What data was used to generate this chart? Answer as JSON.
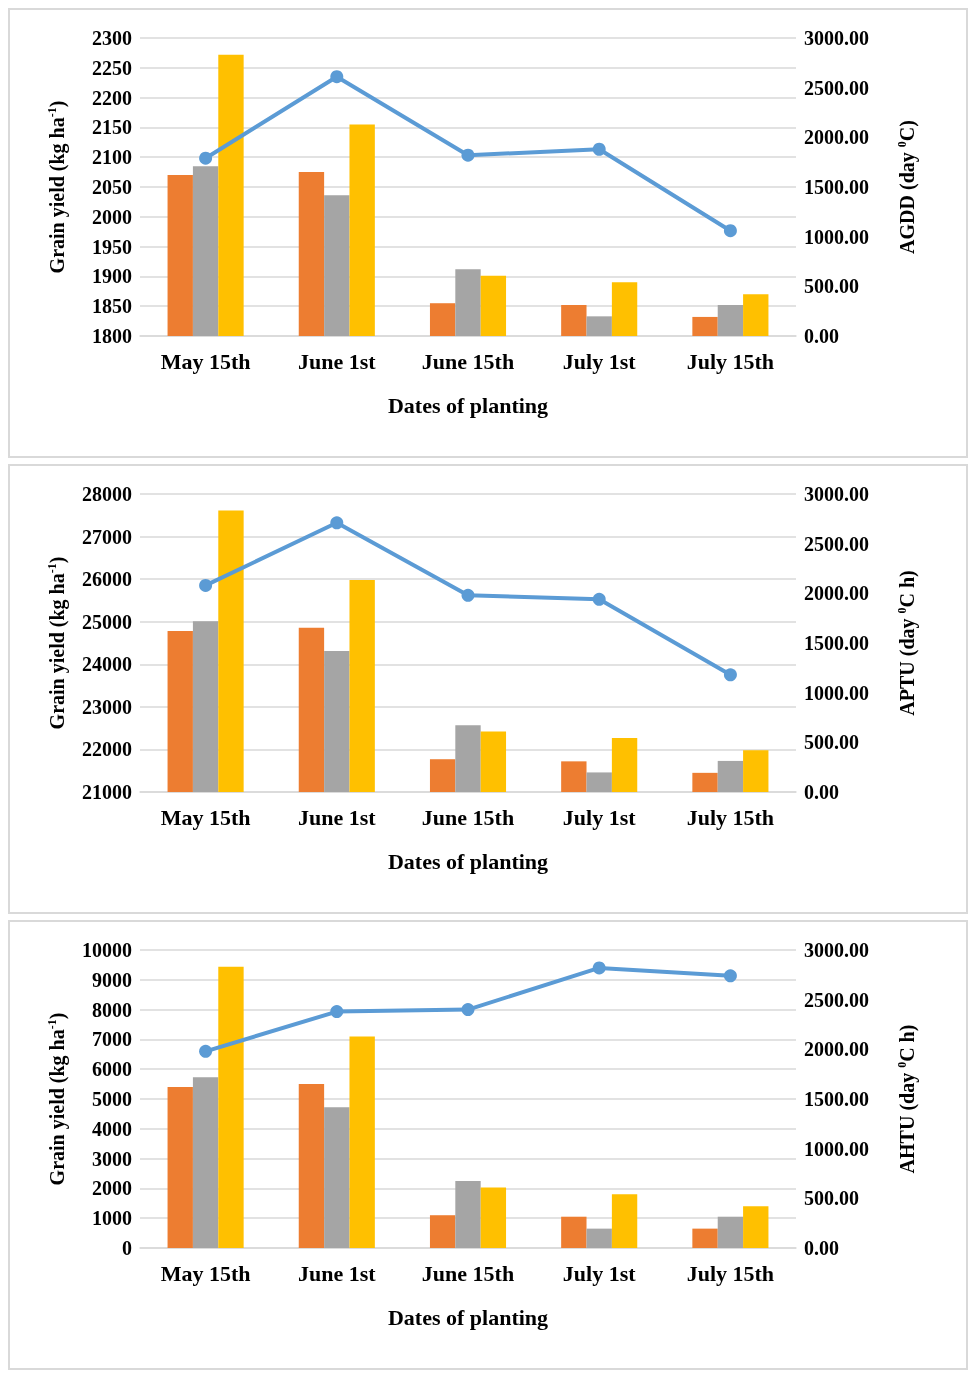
{
  "chart_data": [
    {
      "type": "bar",
      "categories": [
        "May 15th",
        "June 1st",
        "June 15th",
        "July 1st",
        "July 15th"
      ],
      "xlabel": "Dates of planting",
      "ylabel": "Grain yield (kg ha$^{-1}$)",
      "y2label": "AGDD (day $^{0}$C)",
      "ylim": [
        1800,
        2300
      ],
      "yticks": [
        1800,
        1850,
        1900,
        1950,
        2000,
        2050,
        2100,
        2150,
        2200,
        2250,
        2300
      ],
      "y2lim": [
        0,
        3000
      ],
      "y2ticks": [
        {
          "value": 0,
          "label": "0.00"
        },
        {
          "value": 500,
          "label": "500.00"
        },
        {
          "value": 1000,
          "label": "1000.00"
        },
        {
          "value": 1500,
          "label": "1500.00"
        },
        {
          "value": 2000,
          "label": "2000.00"
        },
        {
          "value": 2500,
          "label": "2500.00"
        },
        {
          "value": 3000,
          "label": "3000.00"
        }
      ],
      "grid": "y",
      "series": [
        {
          "color": "#ed7d31",
          "values": [
            2070,
            2075,
            1855,
            1852,
            1832
          ]
        },
        {
          "color": "#a5a5a5",
          "values": [
            2085,
            2036,
            1912,
            1833,
            1852
          ]
        },
        {
          "color": "#ffc000",
          "values": [
            2272,
            2155,
            1901,
            1890,
            1870
          ]
        },
        {
          "type": "line",
          "axis": "y2",
          "color": "#5b9bd5",
          "marker": "circle",
          "line_style": "solid",
          "values": [
            1790,
            2610,
            1820,
            1880,
            1060
          ]
        }
      ]
    },
    {
      "type": "bar",
      "categories": [
        "May 15th",
        "June 1st",
        "June 15th",
        "July 1st",
        "July 15th"
      ],
      "xlabel": "Dates of planting",
      "ylabel": "Grain yield (kg ha$^{-1}$)",
      "y2label": "APTU (day $^{0}$C h)",
      "ylim": [
        21000,
        28000
      ],
      "yticks": [
        21000,
        22000,
        23000,
        24000,
        25000,
        26000,
        27000,
        28000
      ],
      "y2lim": [
        0,
        3000
      ],
      "y2ticks": [
        {
          "value": 0,
          "label": "0.00"
        },
        {
          "value": 500,
          "label": "500.00"
        },
        {
          "value": 1000,
          "label": "1000.00"
        },
        {
          "value": 1500,
          "label": "1500.00"
        },
        {
          "value": 2000,
          "label": "2000.00"
        },
        {
          "value": 2500,
          "label": "2500.00"
        },
        {
          "value": 3000,
          "label": "3000.00"
        }
      ],
      "grid": "y",
      "series": [
        {
          "color": "#ed7d31",
          "values": [
            24780,
            24860,
            21770,
            21720,
            21450
          ]
        },
        {
          "color": "#a5a5a5",
          "values": [
            25010,
            24310,
            22570,
            21460,
            21730
          ]
        },
        {
          "color": "#ffc000",
          "values": [
            27610,
            25980,
            22420,
            22270,
            21980
          ]
        },
        {
          "type": "line",
          "axis": "y2",
          "color": "#5b9bd5",
          "marker": "circle",
          "line_style": "solid",
          "values": [
            2080,
            2710,
            1980,
            1940,
            1180
          ]
        }
      ]
    },
    {
      "type": "bar",
      "categories": [
        "May 15th",
        "June 1st",
        "June 15th",
        "July 1st",
        "July 15th"
      ],
      "xlabel": "Dates of planting",
      "ylabel": "Grain yield (kg ha$^{-1}$)",
      "y2label": "AHTU (day $^{0}$C h)",
      "ylim": [
        0,
        10000
      ],
      "yticks": [
        0,
        1000,
        2000,
        3000,
        4000,
        5000,
        6000,
        7000,
        8000,
        9000,
        10000
      ],
      "y2lim": [
        0,
        3000
      ],
      "y2ticks": [
        {
          "value": 0,
          "label": "0.00"
        },
        {
          "value": 500,
          "label": "500.00"
        },
        {
          "value": 1000,
          "label": "1000.00"
        },
        {
          "value": 1500,
          "label": "1500.00"
        },
        {
          "value": 2000,
          "label": "2000.00"
        },
        {
          "value": 2500,
          "label": "2500.00"
        },
        {
          "value": 3000,
          "label": "3000.00"
        }
      ],
      "grid": "y",
      "series": [
        {
          "color": "#ed7d31",
          "values": [
            5400,
            5500,
            1100,
            1050,
            650
          ]
        },
        {
          "color": "#a5a5a5",
          "values": [
            5730,
            4720,
            2250,
            650,
            1050
          ]
        },
        {
          "color": "#ffc000",
          "values": [
            9440,
            7100,
            2030,
            1800,
            1400
          ]
        },
        {
          "type": "line",
          "axis": "y2",
          "color": "#5b9bd5",
          "marker": "circle",
          "line_style": "solid",
          "values": [
            1980,
            2380,
            2400,
            2820,
            2740
          ]
        }
      ]
    }
  ]
}
